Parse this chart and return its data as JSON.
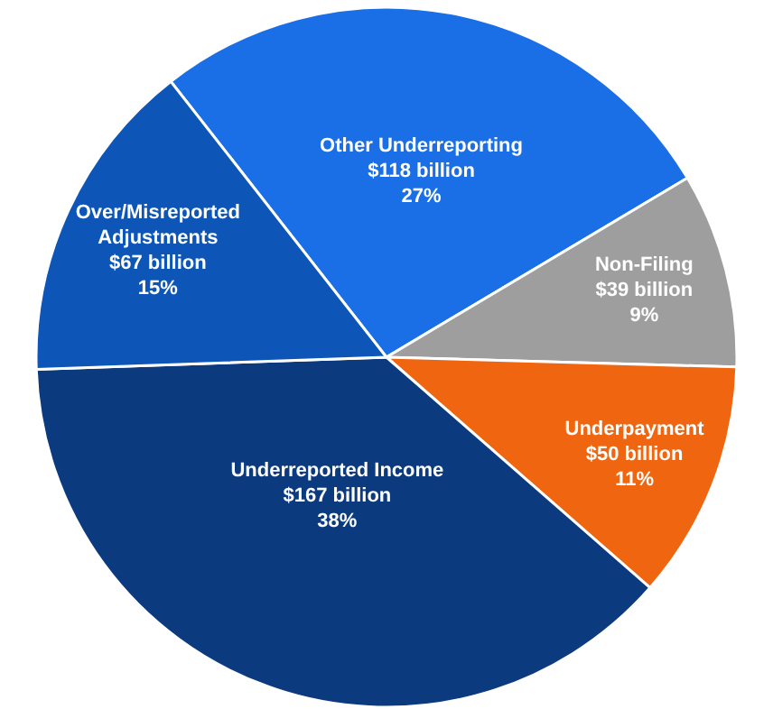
{
  "chart_data": {
    "type": "pie",
    "categories": [
      "Other Underreporting",
      "Non-Filing",
      "Underpayment",
      "Underreported Income",
      "Over/Misreported\nAdjustments"
    ],
    "values": [
      27,
      9,
      11,
      38,
      15
    ],
    "value_labels": [
      "$118 billion\n27%",
      "$39 billion\n9%",
      "$50 billion\n11%",
      "$167 billion\n38%",
      "$67 billion\n15%"
    ],
    "colors": [
      "#1a6fe6",
      "#9e9e9e",
      "#f0650f",
      "#0b3a7e",
      "#0d56b8"
    ]
  }
}
